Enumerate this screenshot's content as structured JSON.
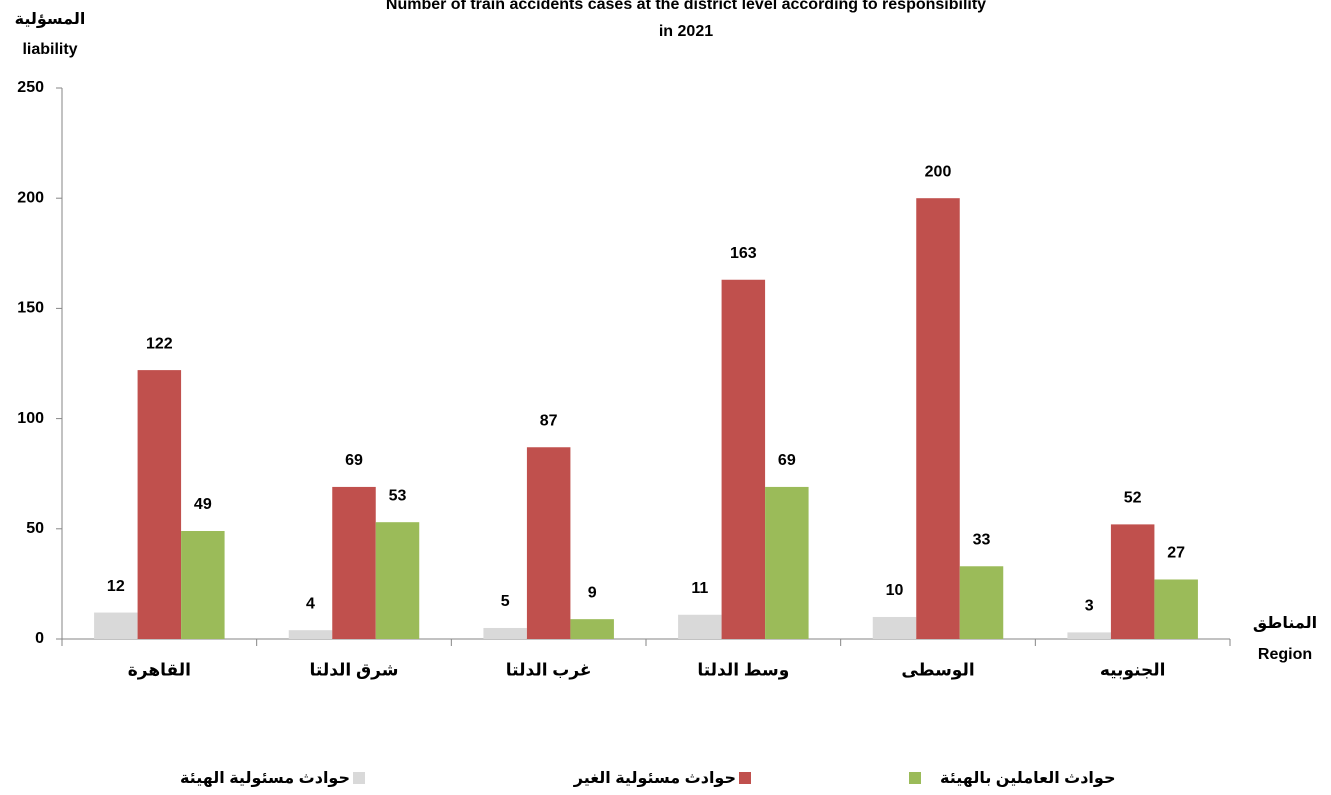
{
  "chart_data": {
    "type": "bar",
    "title": [
      "Number of train accidents cases at the district level according to responsibility",
      "in 2021"
    ],
    "y_label": [
      "المسؤلية",
      "liability"
    ],
    "x_label": [
      "المناطق",
      "Region"
    ],
    "categories": [
      "القاهرة",
      "شرق الدلتا",
      "غرب الدلتا",
      "وسط الدلتا",
      "الوسطى",
      "الجنوبيه"
    ],
    "series": [
      {
        "name": "حوادث مسئولية الهيئة",
        "color": "#d9d9d9",
        "values": [
          12,
          4,
          5,
          11,
          10,
          3
        ]
      },
      {
        "name": "حوادث مسئولية الغير",
        "color": "#c0504d",
        "values": [
          122,
          69,
          87,
          163,
          200,
          52
        ]
      },
      {
        "name": "حوادث العاملين بالهيئة",
        "color": "#9bbb59",
        "values": [
          49,
          53,
          9,
          69,
          33,
          27
        ]
      }
    ],
    "ylim": [
      0,
      250
    ],
    "yticks": [
      0,
      50,
      100,
      150,
      200,
      250
    ],
    "grid": false,
    "legend": "bottom"
  }
}
